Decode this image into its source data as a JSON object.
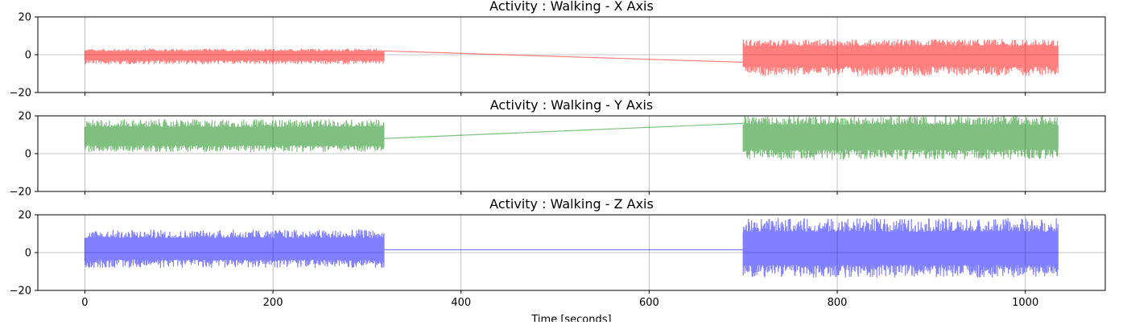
{
  "chart_data": {
    "type": "line",
    "xlabel": "Time [seconds]",
    "xlim": [
      -50,
      1085
    ],
    "x_ticks": [
      0,
      200,
      400,
      600,
      800,
      1000
    ],
    "ylim": [
      -20,
      20
    ],
    "y_ticks": [
      -20,
      0,
      20
    ],
    "grid": true,
    "x_tick_labels_on_bottom_panel_only": true,
    "segments": [
      {
        "x_start": 0,
        "x_end": 318
      },
      {
        "x_start": 700,
        "x_end": 1035
      }
    ],
    "panels": [
      {
        "title": "Activity : Walking - X Axis",
        "series_name": "X",
        "color": "#ff0000",
        "alpha": 0.5,
        "center": 0,
        "envelope_upper": [
          3,
          8
        ],
        "envelope_lower": [
          -5,
          -11
        ],
        "bridge": {
          "x": [
            318,
            700
          ],
          "y": [
            2,
            -4
          ]
        }
      },
      {
        "title": "Activity : Walking - Y Axis",
        "series_name": "Y",
        "color": "#008000",
        "alpha": 0.5,
        "center": 9,
        "envelope_upper": [
          18,
          20
        ],
        "envelope_lower": [
          1,
          -3
        ],
        "bridge": {
          "x": [
            318,
            700
          ],
          "y": [
            8,
            16
          ]
        }
      },
      {
        "title": "Activity : Walking - Z Axis",
        "series_name": "Z",
        "color": "#0000ff",
        "alpha": 0.5,
        "center": 2,
        "envelope_upper": [
          12,
          18
        ],
        "envelope_lower": [
          -8,
          -13
        ],
        "bridge": {
          "x": [
            318,
            700
          ],
          "y": [
            1.5,
            1.5
          ]
        }
      }
    ]
  }
}
